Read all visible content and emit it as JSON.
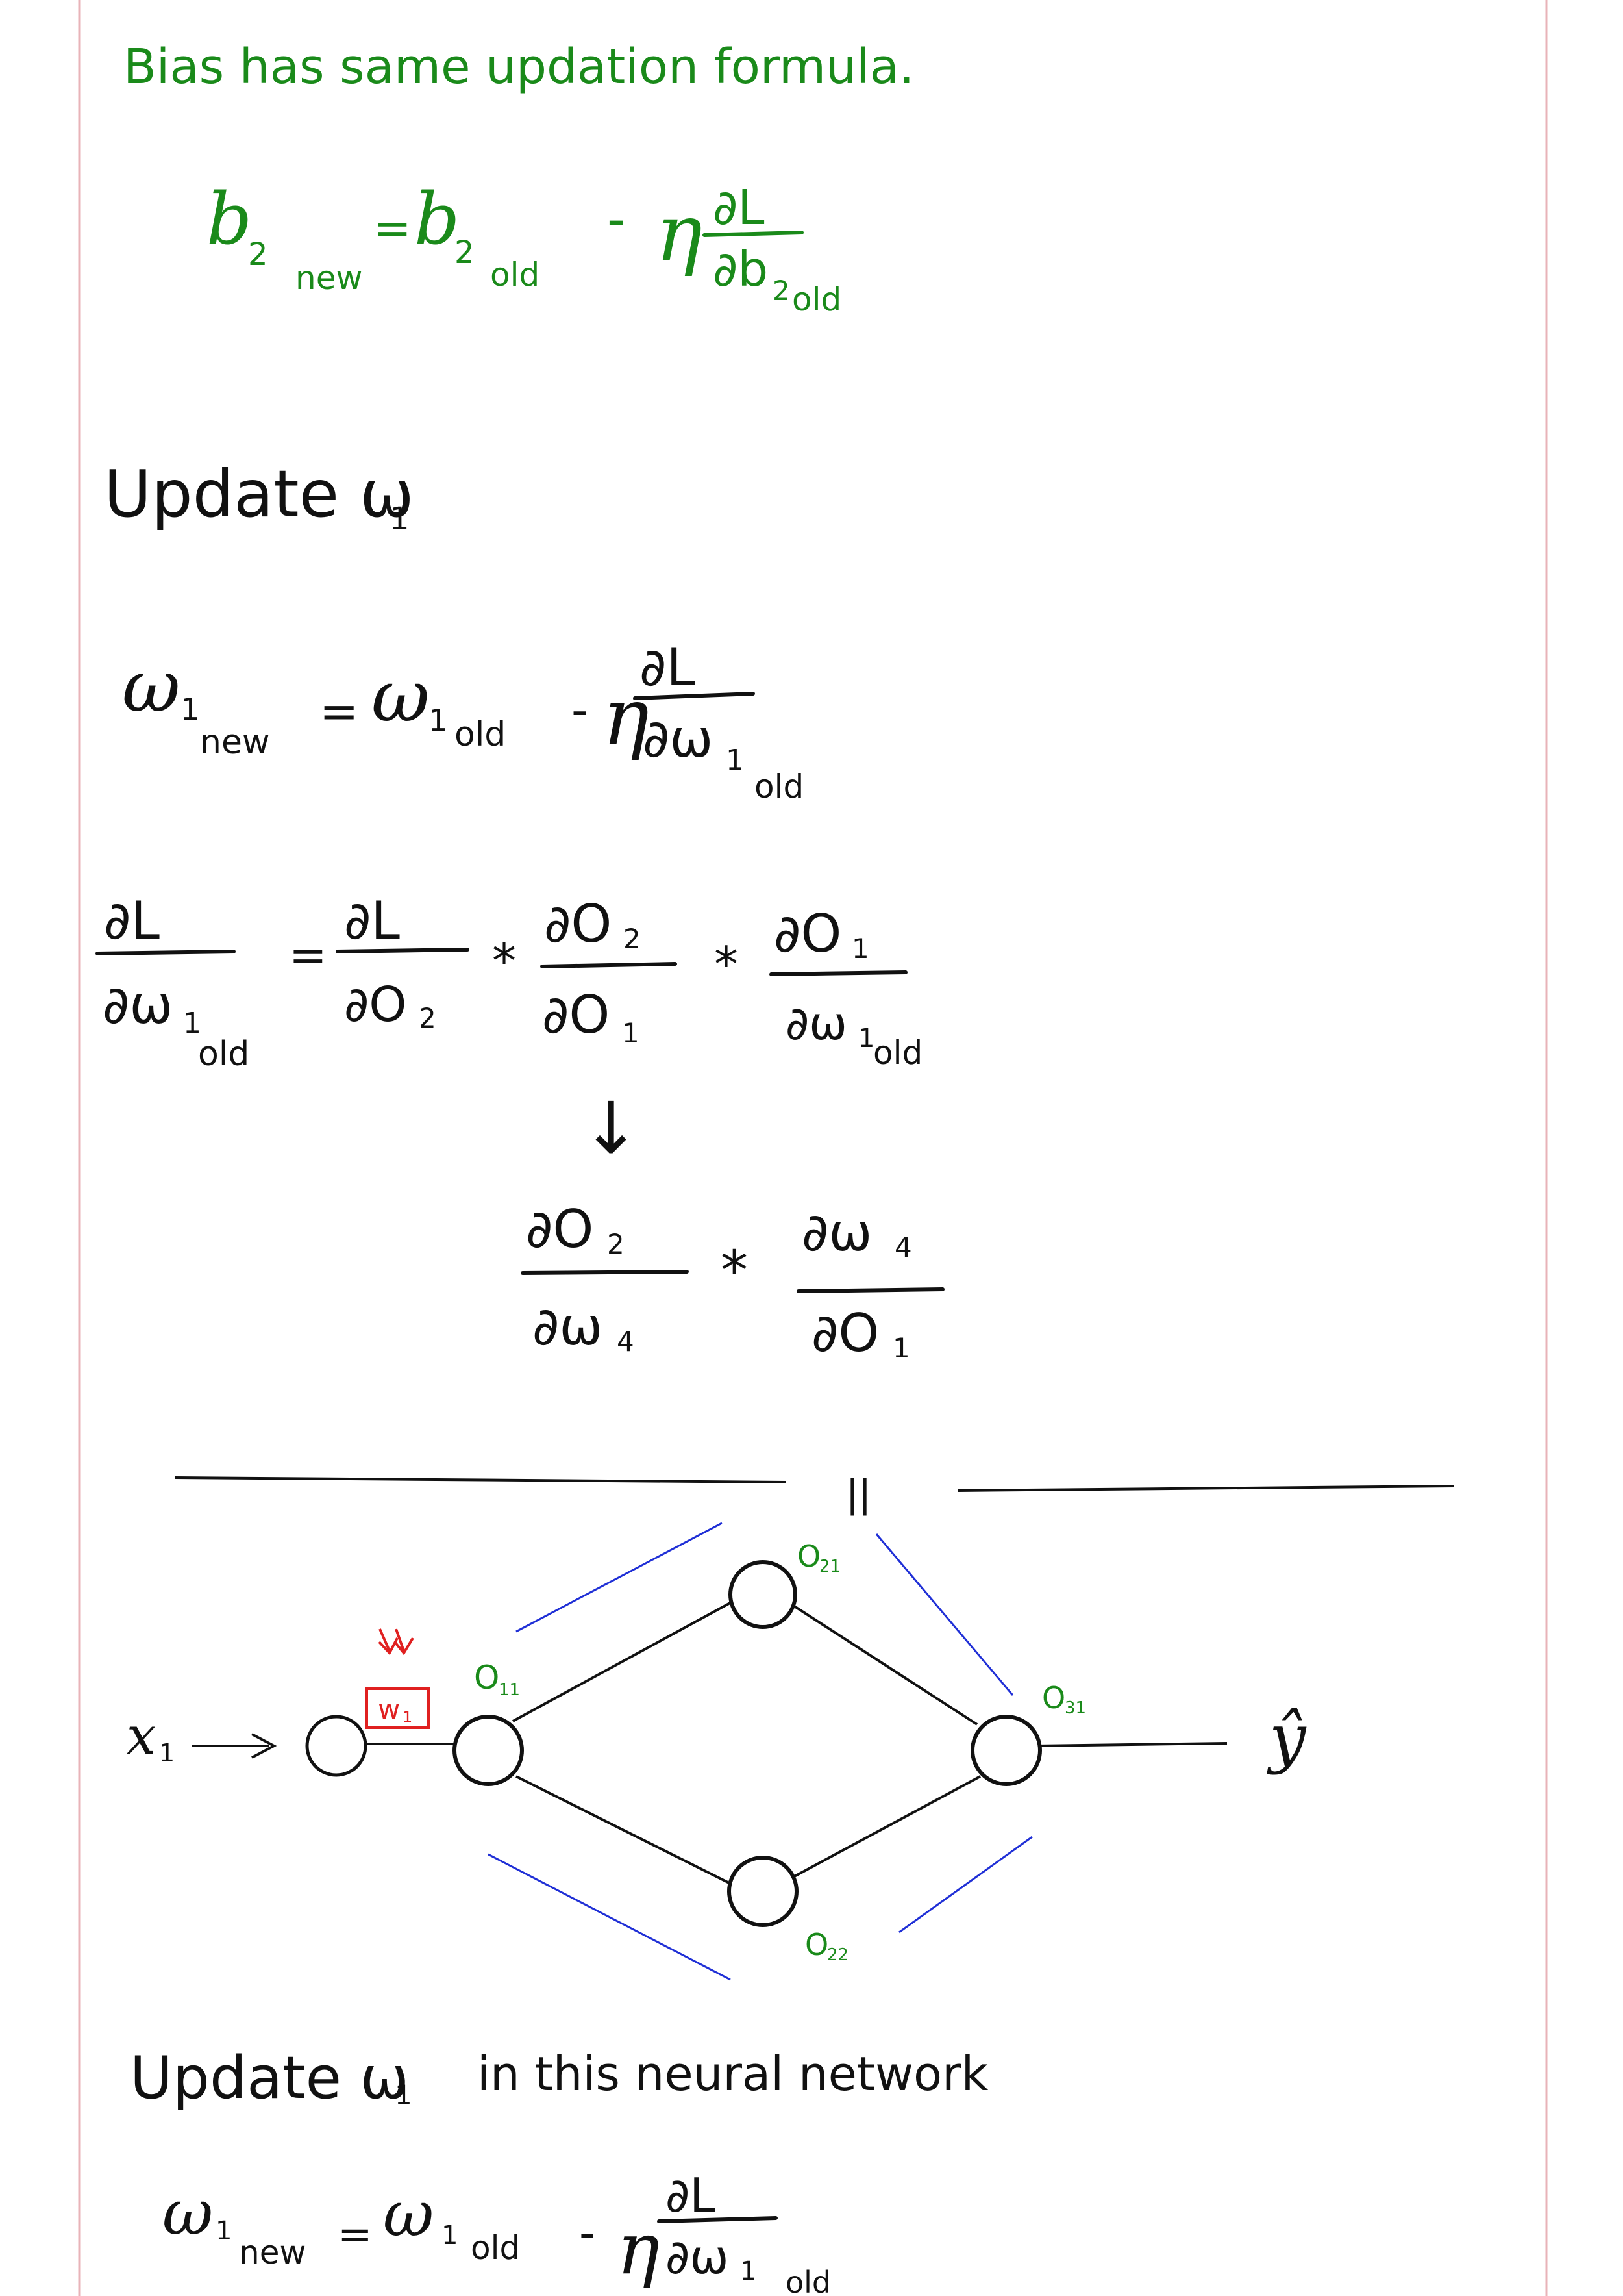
{
  "colors": {
    "ink": "#111111",
    "green": "#1a8a1a",
    "blue": "#1f2fd6",
    "red": "#e02020",
    "margin_line": "#e8b3b8"
  },
  "bias_section": {
    "title": "Bias has same updation formula.",
    "formula": {
      "lhs": "b",
      "lhs_sub": "2",
      "lhs_sub2": "new",
      "eq": "=",
      "rhs": "b",
      "rhs_sub": "2",
      "rhs_sub2": "old",
      "minus": "-",
      "eta": "η",
      "num": "∂L",
      "den": "∂b",
      "den_sub": "2",
      "den_sub2": "old"
    }
  },
  "update_w1_section": {
    "heading_text": "Update ω",
    "heading_sub": "1",
    "formula": {
      "lhs": "ω",
      "lhs_sub": "1",
      "lhs_sub2": "new",
      "eq": "=",
      "rhs": "ω",
      "rhs_sub": "1",
      "rhs_sub2": "old",
      "minus": "-",
      "eta": "η",
      "num": "∂L",
      "den": "∂ω",
      "den_sub": "1",
      "den_sub2": "old"
    }
  },
  "chain_rule": {
    "lhs_num": "∂L",
    "lhs_den": "∂ω",
    "lhs_den_sub": "1",
    "lhs_den_sub2": "old",
    "eq": "=",
    "t1_num": "∂L",
    "t1_den": "∂O",
    "t1_den_sub": "2",
    "star1": "*",
    "t2_num": "∂O",
    "t2_num_sub": "2",
    "t2_den": "∂O",
    "t2_den_sub": "1",
    "star2": "*",
    "t3_num": "∂O",
    "t3_num_sub": "1",
    "t3_den": "∂ω",
    "t3_den_sub": "1",
    "t3_den_sub2": "old",
    "arrow": "↓",
    "e1_num": "∂O",
    "e1_num_sub": "2",
    "e1_den": "∂ω",
    "e1_den_sub": "4",
    "star3": "*",
    "e2_num": "∂ω",
    "e2_num_sub": "4",
    "e2_den": "∂O",
    "e2_den_sub": "1",
    "equals_mark": "||"
  },
  "network": {
    "input_label": "x",
    "input_sub": "1",
    "weight_label": "w",
    "weight_sub": "1",
    "output_label": "ŷ",
    "nodes": [
      {
        "label": "O",
        "sub": "11"
      },
      {
        "label": "O",
        "sub": "21"
      },
      {
        "label": "O",
        "sub": "22"
      },
      {
        "label": "O",
        "sub": "31"
      }
    ]
  },
  "bottom_section": {
    "sentence": "Update ω",
    "sentence_sub": "1",
    "sentence_rest": "in this neural network",
    "formula": {
      "lhs": "ω",
      "lhs_sub": "1",
      "lhs_sub2": "new",
      "eq": "=",
      "rhs": "ω",
      "rhs_sub": "1",
      "rhs_sub2": "old",
      "minus": "-",
      "eta": "η",
      "num": "∂L",
      "den": "∂ω",
      "den_sub": "1",
      "den_sub2": "old"
    }
  }
}
